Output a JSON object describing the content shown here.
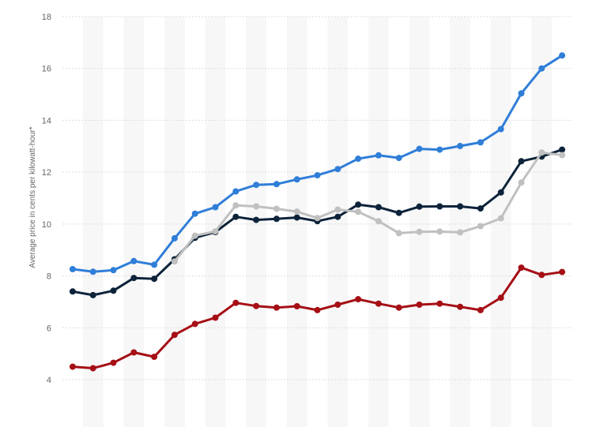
{
  "chart_data": {
    "type": "line",
    "ylabel": "Average price in cents per kilowatt-hour*",
    "ylim": [
      4,
      18
    ],
    "yticks": [
      4,
      6,
      8,
      10,
      12,
      14,
      16,
      18
    ],
    "x_count": 25,
    "grid": true,
    "legend": "none",
    "series": [
      {
        "color": "#2f7ed8",
        "values": [
          8.26,
          8.16,
          8.22,
          8.57,
          8.43,
          9.45,
          10.4,
          10.65,
          11.26,
          11.51,
          11.54,
          11.72,
          11.88,
          12.12,
          12.52,
          12.65,
          12.55,
          12.9,
          12.87,
          13.01,
          13.15,
          13.66,
          15.04,
          16.0,
          16.5
        ]
      },
      {
        "color": "#0d233a",
        "values": [
          7.4,
          7.26,
          7.43,
          7.92,
          7.89,
          8.64,
          9.47,
          9.69,
          10.28,
          10.16,
          10.2,
          10.25,
          10.11,
          10.28,
          10.75,
          10.65,
          10.43,
          10.67,
          10.68,
          10.68,
          10.6,
          11.22,
          12.42,
          12.6,
          12.87
        ]
      },
      {
        "color": "#c0c0c0",
        "values": [
          null,
          null,
          null,
          null,
          null,
          8.56,
          9.55,
          9.72,
          10.72,
          10.68,
          10.59,
          10.48,
          10.23,
          10.56,
          10.47,
          10.11,
          9.65,
          9.7,
          9.71,
          9.68,
          9.92,
          10.22,
          11.6,
          12.76,
          12.66
        ]
      },
      {
        "color": "#a50f15",
        "values": [
          4.5,
          4.44,
          4.65,
          5.05,
          4.88,
          5.73,
          6.15,
          6.39,
          6.96,
          6.84,
          6.78,
          6.83,
          6.68,
          6.89,
          7.1,
          6.93,
          6.78,
          6.89,
          6.93,
          6.81,
          6.68,
          7.16,
          8.32,
          8.04,
          8.15
        ]
      }
    ]
  },
  "colors": {
    "band": "#f7f7f7",
    "grid": "#dddddd",
    "text": "#666666"
  }
}
